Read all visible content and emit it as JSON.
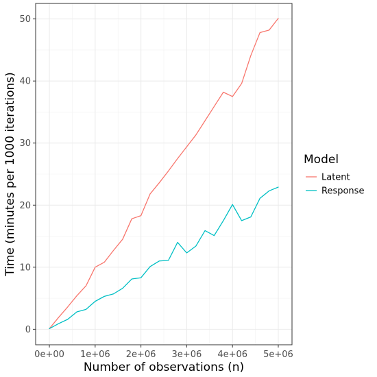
{
  "chart_data": {
    "type": "line",
    "xlabel": "Number of observations (n)",
    "ylabel": "Time (minutes per 1000 iterations)",
    "xlim": [
      -300000,
      5300000
    ],
    "ylim": [
      -2.5,
      52.5
    ],
    "xticks": [
      0,
      1000000,
      2000000,
      3000000,
      4000000,
      5000000
    ],
    "xtick_labels": [
      "0e+00",
      "1e+06",
      "2e+06",
      "3e+06",
      "4e+06",
      "5e+06"
    ],
    "yticks": [
      0,
      10,
      20,
      30,
      40,
      50
    ],
    "ytick_labels": [
      "0",
      "10",
      "20",
      "30",
      "40",
      "50"
    ],
    "grid": true,
    "legend": {
      "title": "Model",
      "placement": "right"
    },
    "x": [
      0,
      200000,
      400000,
      600000,
      800000,
      1000000,
      1200000,
      1400000,
      1600000,
      1800000,
      2000000,
      2200000,
      2400000,
      2600000,
      2800000,
      3000000,
      3200000,
      3400000,
      3600000,
      3800000,
      4000000,
      4200000,
      4400000,
      4600000,
      4800000,
      5000000
    ],
    "series": [
      {
        "name": "Latent",
        "color": "#F8766D",
        "values": [
          0.1,
          1.9,
          3.6,
          5.4,
          7.0,
          10.0,
          10.8,
          12.7,
          14.5,
          17.8,
          18.3,
          21.8,
          23.6,
          25.5,
          27.5,
          29.4,
          31.3,
          33.6,
          35.9,
          38.2,
          37.5,
          39.6,
          44.1,
          47.8,
          48.2,
          50.1
        ]
      },
      {
        "name": "Response",
        "color": "#00BFC4",
        "values": [
          0.1,
          0.9,
          1.6,
          2.8,
          3.2,
          4.5,
          5.3,
          5.7,
          6.6,
          8.1,
          8.3,
          10.1,
          11.0,
          11.1,
          14.0,
          12.3,
          13.4,
          15.9,
          15.1,
          17.5,
          20.1,
          17.5,
          18.1,
          21.1,
          22.3,
          22.9
        ]
      }
    ]
  }
}
